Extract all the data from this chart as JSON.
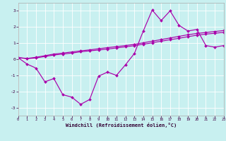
{
  "bg_color": "#c8f0f0",
  "line_color": "#aa00aa",
  "xlabel": "Windchill (Refroidissement éolien,°C)",
  "xlim": [
    0,
    23
  ],
  "ylim": [
    -3.5,
    3.5
  ],
  "xticks": [
    0,
    1,
    2,
    3,
    4,
    5,
    6,
    7,
    8,
    9,
    10,
    11,
    12,
    13,
    14,
    15,
    16,
    17,
    18,
    19,
    20,
    21,
    22,
    23
  ],
  "yticks": [
    -3,
    -2,
    -1,
    0,
    1,
    2,
    3
  ],
  "line1_x": [
    0,
    1,
    2,
    3,
    4,
    5,
    6,
    7,
    8,
    9,
    10,
    11,
    12,
    13,
    14,
    15,
    16,
    17,
    18,
    19,
    20,
    21,
    22,
    23
  ],
  "line1_y": [
    0.1,
    -0.3,
    -0.55,
    -1.4,
    -1.2,
    -2.2,
    -2.35,
    -2.8,
    -2.5,
    -1.05,
    -0.8,
    -1.0,
    -0.35,
    0.35,
    1.75,
    3.05,
    2.4,
    3.0,
    2.1,
    1.75,
    1.85,
    0.85,
    0.75,
    0.85
  ],
  "line2_x": [
    0,
    1,
    2,
    3,
    4,
    5,
    6,
    7,
    8,
    9,
    10,
    11,
    12,
    13,
    14,
    15,
    16,
    17,
    18,
    19,
    20,
    21,
    22,
    23
  ],
  "line2_y": [
    0.1,
    0.05,
    0.12,
    0.22,
    0.32,
    0.38,
    0.45,
    0.52,
    0.58,
    0.65,
    0.72,
    0.78,
    0.85,
    0.92,
    1.02,
    1.12,
    1.22,
    1.32,
    1.42,
    1.52,
    1.6,
    1.66,
    1.72,
    1.78
  ],
  "line3_x": [
    0,
    1,
    2,
    3,
    4,
    5,
    6,
    7,
    8,
    9,
    10,
    11,
    12,
    13,
    14,
    15,
    16,
    17,
    18,
    19,
    20,
    21,
    22,
    23
  ],
  "line3_y": [
    0.1,
    0.03,
    0.08,
    0.17,
    0.26,
    0.32,
    0.38,
    0.46,
    0.52,
    0.57,
    0.63,
    0.7,
    0.77,
    0.84,
    0.93,
    1.02,
    1.12,
    1.21,
    1.3,
    1.4,
    1.49,
    1.56,
    1.61,
    1.67
  ]
}
